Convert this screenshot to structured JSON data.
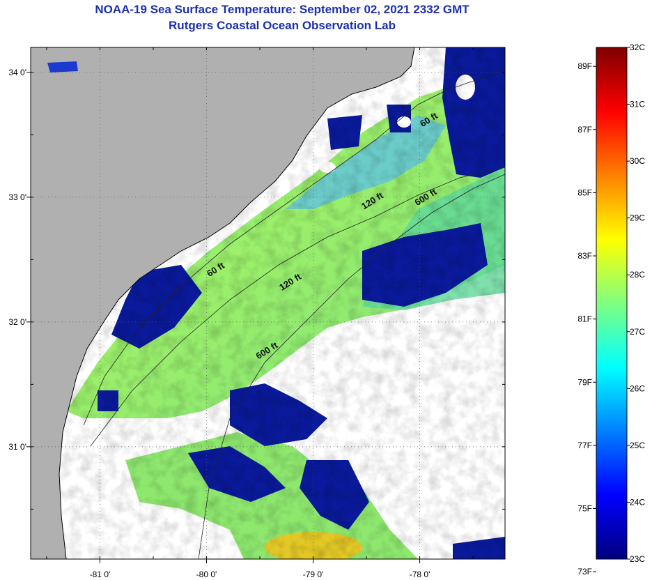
{
  "title": "NOAA-19 Sea Surface Temperature:  September 02, 2021 2332 GMT",
  "subtitle": "Rutgers Coastal Ocean Observation Lab",
  "colors": {
    "title": "#1c2fb0",
    "land": "#b0b0b0",
    "cloud": "#ffffff",
    "gridline": "#555555"
  },
  "map": {
    "lon_range": [
      -81.65,
      -77.2
    ],
    "lat_range": [
      30.1,
      34.2
    ],
    "lon_ticks": [
      {
        "value": -81,
        "label": "-81 0'"
      },
      {
        "value": -80,
        "label": "-80 0'"
      },
      {
        "value": -79,
        "label": "-79 0'"
      },
      {
        "value": -78,
        "label": "-78 0'"
      }
    ],
    "lat_ticks": [
      {
        "value": 34,
        "label": "34 0'"
      },
      {
        "value": 33,
        "label": "33 0'"
      },
      {
        "value": 32,
        "label": "32 0'"
      },
      {
        "value": 31,
        "label": "31 0'"
      }
    ],
    "contour_labels": [
      {
        "text": "60 ft",
        "lon": -77.9,
        "lat": 33.6
      },
      {
        "text": "120 ft",
        "lon": -78.43,
        "lat": 32.95
      },
      {
        "text": "600 ft",
        "lon": -77.93,
        "lat": 32.98
      },
      {
        "text": "60 ft",
        "lon": -79.9,
        "lat": 32.4
      },
      {
        "text": "120 ft",
        "lon": -79.2,
        "lat": 32.3
      },
      {
        "text": "600 ft",
        "lon": -79.42,
        "lat": 31.75
      }
    ]
  },
  "colorbar": {
    "fahrenheit_labels": [
      "89F",
      "87F",
      "85F",
      "83F",
      "81F",
      "79F",
      "77F",
      "75F",
      "73F"
    ],
    "celsius_labels": [
      "32C",
      "31C",
      "30C",
      "29C",
      "28C",
      "27C",
      "26C",
      "25C",
      "24C",
      "23C"
    ],
    "range_c": [
      23,
      32
    ],
    "stops": [
      "#00007f",
      "#0000ff",
      "#0080ff",
      "#00ffff",
      "#80ff80",
      "#ffff00",
      "#ff8000",
      "#ff0000",
      "#7f0000"
    ]
  }
}
